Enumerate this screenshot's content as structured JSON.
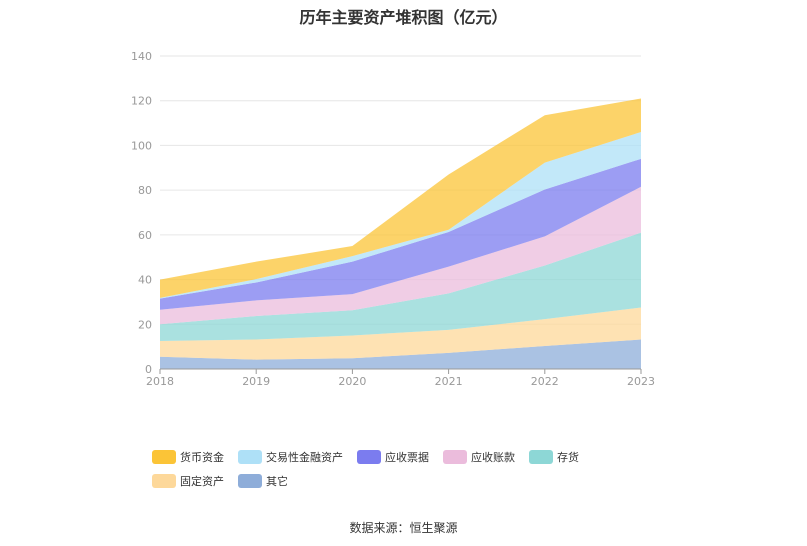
{
  "chart_data": {
    "type": "area",
    "stacked": true,
    "title": "历年主要资产堆积图（亿元）",
    "source": "数据来源：恒生聚源",
    "x": [
      "2018",
      "2019",
      "2020",
      "2021",
      "2022",
      "2023"
    ],
    "ylim": [
      0,
      140
    ],
    "yticks": [
      0,
      20,
      40,
      60,
      80,
      100,
      120,
      140
    ],
    "grid": true,
    "legend_position": "bottom",
    "series": [
      {
        "name": "其它",
        "color": "#8eadd9",
        "values": [
          5.5,
          4.2,
          4.8,
          7.2,
          10.3,
          13.2
        ]
      },
      {
        "name": "固定资产",
        "color": "#fdd89a",
        "values": [
          7.0,
          9.0,
          10.2,
          10.3,
          12.0,
          14.3
        ]
      },
      {
        "name": "存货",
        "color": "#8dd7d6",
        "values": [
          7.5,
          10.5,
          11.3,
          16.3,
          24.0,
          33.5
        ]
      },
      {
        "name": "应收账款",
        "color": "#ebbcdc",
        "values": [
          6.5,
          7.0,
          7.2,
          12.0,
          13.0,
          20.5
        ]
      },
      {
        "name": "应收票据",
        "color": "#7b7cef",
        "values": [
          5.0,
          8.0,
          14.5,
          15.5,
          21.0,
          12.5
        ]
      },
      {
        "name": "交易性金融资产",
        "color": "#aee0f7",
        "values": [
          0.3,
          1.5,
          2.5,
          1.0,
          12.0,
          12.0
        ]
      },
      {
        "name": "货币资金",
        "color": "#fbc437",
        "values": [
          8.2,
          7.8,
          4.5,
          24.7,
          21.2,
          15.0
        ]
      }
    ],
    "legend_order": [
      "货币资金",
      "交易性金融资产",
      "应收票据",
      "应收账款",
      "存货",
      "固定资产",
      "其它"
    ]
  }
}
